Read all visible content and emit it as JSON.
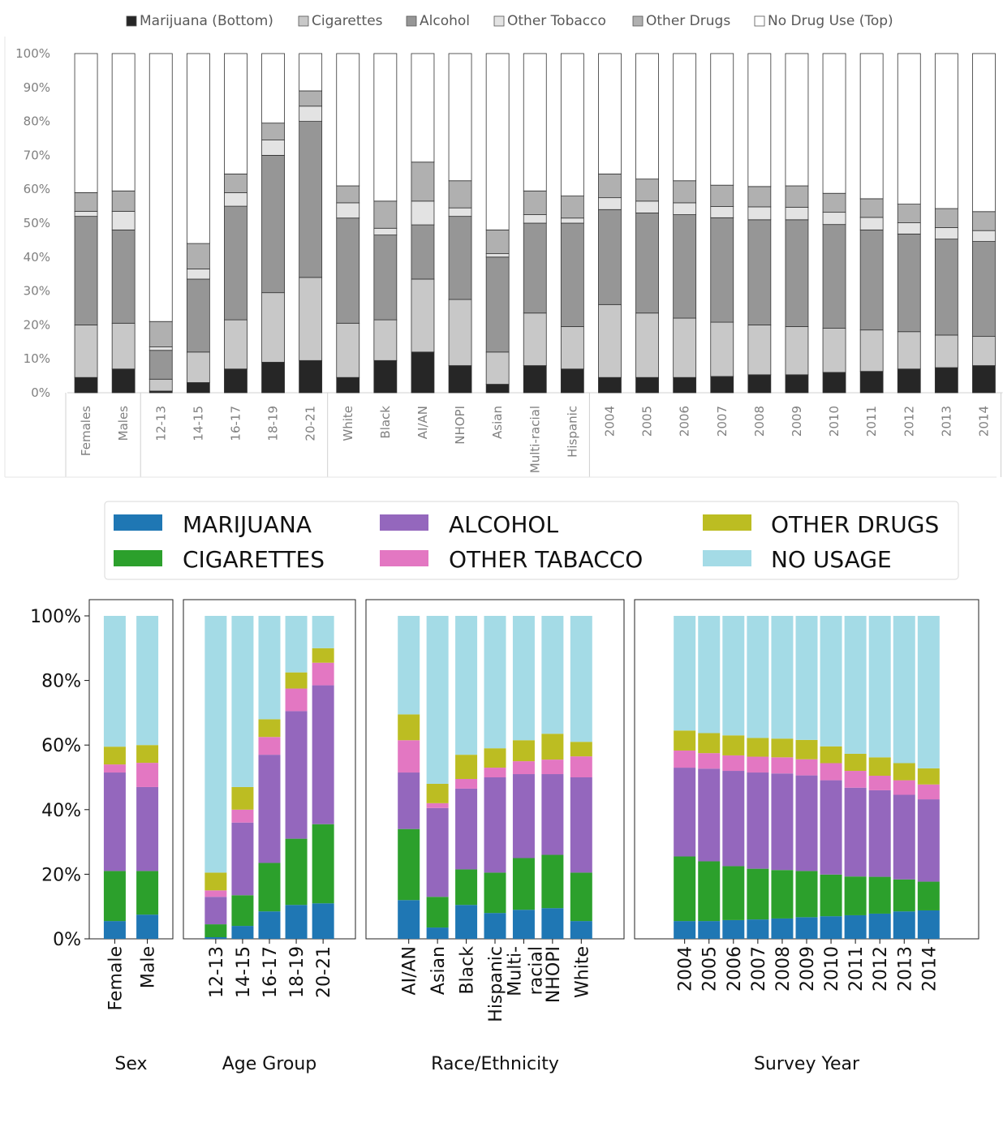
{
  "chart_data": [
    {
      "type": "bar",
      "stacked": true,
      "title": "",
      "ylabel": "",
      "xlabel": "",
      "ylim": [
        0,
        100
      ],
      "yticks": [
        "0%",
        "10%",
        "20%",
        "30%",
        "40%",
        "50%",
        "60%",
        "70%",
        "80%",
        "90%",
        "100%"
      ],
      "grid": false,
      "legend_position": "top",
      "legend": [
        "Marijuana (Bottom)",
        "Cigarettes",
        "Alcohol",
        "Other Tobacco",
        "Other Drugs",
        "No Drug Use (Top)"
      ],
      "colors": [
        "#262626",
        "#c8c8c8",
        "#969696",
        "#e3e3e3",
        "#b0b0b0",
        "#ffffff"
      ],
      "categories": [
        "Females",
        "Males",
        "12-13",
        "14-15",
        "16-17",
        "18-19",
        "20-21",
        "White",
        "Black",
        "AI/AN",
        "NHOPI",
        "Asian",
        "Multi-racial",
        "Hispanic",
        "2004",
        "2005",
        "2006",
        "2007",
        "2008",
        "2009",
        "2010",
        "2011",
        "2012",
        "2013",
        "2014"
      ],
      "group_sizes": [
        2,
        5,
        7,
        11
      ],
      "series": [
        {
          "name": "Marijuana (Bottom)",
          "values": [
            4.5,
            7,
            0.5,
            3,
            7,
            9,
            9.5,
            4.5,
            9.5,
            12,
            8,
            2.5,
            8,
            7,
            4.5,
            4.5,
            4.5,
            4.8,
            5.3,
            5.3,
            6,
            6.3,
            7,
            7.4,
            8
          ]
        },
        {
          "name": "Cigarettes",
          "values": [
            15.5,
            13.5,
            3.5,
            9,
            14.5,
            20.5,
            24.5,
            16,
            12,
            21.5,
            19.5,
            9.5,
            15.5,
            12.5,
            21.5,
            19,
            17.5,
            16,
            14.7,
            14.2,
            13,
            12.2,
            11,
            9.6,
            8.6
          ]
        },
        {
          "name": "Alcohol",
          "values": [
            32,
            27.5,
            8.5,
            21.5,
            33.5,
            40.5,
            46,
            31,
            25,
            16,
            24.5,
            28,
            26.5,
            30.5,
            28,
            29.5,
            30.5,
            30.8,
            31,
            31.5,
            30.6,
            29.5,
            28.8,
            28.3,
            28
          ]
        },
        {
          "name": "Other Tobacco",
          "values": [
            1.5,
            5.5,
            1,
            3,
            4,
            4.5,
            4.5,
            4.5,
            2,
            7,
            2.5,
            1,
            2.5,
            1.5,
            3.5,
            3.5,
            3.5,
            3.3,
            3.8,
            3.7,
            3.6,
            3.7,
            3.3,
            3.4,
            3.2
          ]
        },
        {
          "name": "Other Drugs",
          "values": [
            5.5,
            6,
            7.5,
            7.5,
            5.5,
            5,
            4.5,
            5,
            8,
            11.5,
            8,
            7,
            7,
            6.5,
            7,
            6.5,
            6.5,
            6.3,
            6,
            6.3,
            5.6,
            5.5,
            5.5,
            5.6,
            5.6
          ]
        },
        {
          "name": "No Drug Use (Top)",
          "values": [
            41,
            40.5,
            79,
            56,
            35.5,
            20.5,
            11,
            39,
            43.5,
            32,
            37.5,
            52,
            40.5,
            42,
            35.5,
            37,
            37.5,
            38.8,
            39.2,
            39,
            41.2,
            42.8,
            44.4,
            45.7,
            46.6
          ]
        }
      ]
    },
    {
      "type": "bar",
      "stacked": true,
      "title": "",
      "ylabel": "",
      "xlabel": "",
      "ylim": [
        0,
        100
      ],
      "yticks": [
        "0%",
        "20%",
        "40%",
        "60%",
        "80%",
        "100%"
      ],
      "grid": false,
      "legend_position": "top",
      "legend": [
        "MARIJUANA",
        "CIGARETTES",
        "ALCOHOL",
        "OTHER TABACCO",
        "OTHER DRUGS",
        "NO USAGE"
      ],
      "colors": [
        "#1f77b4",
        "#2ca02c",
        "#9467bd",
        "#e377c2",
        "#bcbd22",
        "#a4dbe6"
      ],
      "groups": [
        {
          "name": "Sex",
          "categories": [
            "Female",
            "Male"
          ],
          "series": [
            {
              "name": "MARIJUANA",
              "values": [
                5.5,
                7.5
              ]
            },
            {
              "name": "CIGARETTES",
              "values": [
                15.5,
                13.5
              ]
            },
            {
              "name": "ALCOHOL",
              "values": [
                30.5,
                26
              ]
            },
            {
              "name": "OTHER TABACCO",
              "values": [
                2.5,
                7.5
              ]
            },
            {
              "name": "OTHER DRUGS",
              "values": [
                5.5,
                5.5
              ]
            },
            {
              "name": "NO USAGE",
              "values": [
                40.5,
                40
              ]
            }
          ]
        },
        {
          "name": "Age Group",
          "categories": [
            "12-13",
            "14-15",
            "16-17",
            "18-19",
            "20-21"
          ],
          "series": [
            {
              "name": "MARIJUANA",
              "values": [
                0.5,
                4,
                8.5,
                10.5,
                11
              ]
            },
            {
              "name": "CIGARETTES",
              "values": [
                4,
                9.5,
                15,
                20.5,
                24.5
              ]
            },
            {
              "name": "ALCOHOL",
              "values": [
                8.5,
                22.5,
                33.5,
                39.5,
                43
              ]
            },
            {
              "name": "OTHER TABACCO",
              "values": [
                2,
                4,
                5.5,
                7,
                7
              ]
            },
            {
              "name": "OTHER DRUGS",
              "values": [
                5.5,
                7,
                5.5,
                5,
                4.5
              ]
            },
            {
              "name": "NO USAGE",
              "values": [
                79.5,
                53,
                32,
                17.5,
                10
              ]
            }
          ]
        },
        {
          "name": "Race/Ethnicity",
          "categories": [
            "AI/AN",
            "Asian",
            "Black",
            "Hispanic",
            "Multi-racial",
            "NHOPI",
            "White"
          ],
          "series": [
            {
              "name": "MARIJUANA",
              "values": [
                12,
                3.5,
                10.5,
                8,
                9,
                9.5,
                5.5
              ]
            },
            {
              "name": "CIGARETTES",
              "values": [
                22,
                9.5,
                11,
                12.5,
                16,
                16.5,
                15
              ]
            },
            {
              "name": "ALCOHOL",
              "values": [
                17.5,
                27.5,
                25,
                29.5,
                26,
                25,
                29.5
              ]
            },
            {
              "name": "OTHER TABACCO",
              "values": [
                10,
                1.5,
                3,
                3,
                4,
                4.5,
                6.5
              ]
            },
            {
              "name": "OTHER DRUGS",
              "values": [
                8,
                6,
                7.5,
                6,
                6.5,
                8,
                4.5
              ]
            },
            {
              "name": "NO USAGE",
              "values": [
                30.5,
                52,
                43,
                41,
                38.5,
                36.5,
                39
              ]
            }
          ]
        },
        {
          "name": "Survey Year",
          "categories": [
            "2004",
            "2005",
            "2006",
            "2007",
            "2008",
            "2009",
            "2010",
            "2011",
            "2012",
            "2013",
            "2014"
          ],
          "series": [
            {
              "name": "MARIJUANA",
              "values": [
                5.5,
                5.5,
                5.8,
                6,
                6.3,
                6.7,
                7,
                7.3,
                7.8,
                8.5,
                8.8
              ]
            },
            {
              "name": "CIGARETTES",
              "values": [
                20,
                18.5,
                16.7,
                15.7,
                15,
                14.3,
                12.9,
                12,
                11.4,
                9.9,
                8.9
              ]
            },
            {
              "name": "ALCOHOL",
              "values": [
                27.5,
                28.7,
                29.5,
                29.8,
                29.9,
                29.6,
                29.2,
                27.5,
                26.8,
                26.2,
                25.5
              ]
            },
            {
              "name": "OTHER TABACCO",
              "values": [
                5.3,
                4.8,
                4.8,
                4.9,
                5,
                5,
                5.3,
                5.2,
                4.5,
                4.5,
                4.6
              ]
            },
            {
              "name": "OTHER DRUGS",
              "values": [
                6.2,
                6.2,
                6.2,
                5.8,
                5.8,
                6,
                5.2,
                5.3,
                5.7,
                5.3,
                5
              ]
            },
            {
              "name": "NO USAGE",
              "values": [
                35.5,
                36.3,
                37,
                37.8,
                38,
                38.4,
                40.4,
                42.7,
                43.8,
                45.6,
                47.2
              ]
            }
          ]
        }
      ]
    }
  ]
}
